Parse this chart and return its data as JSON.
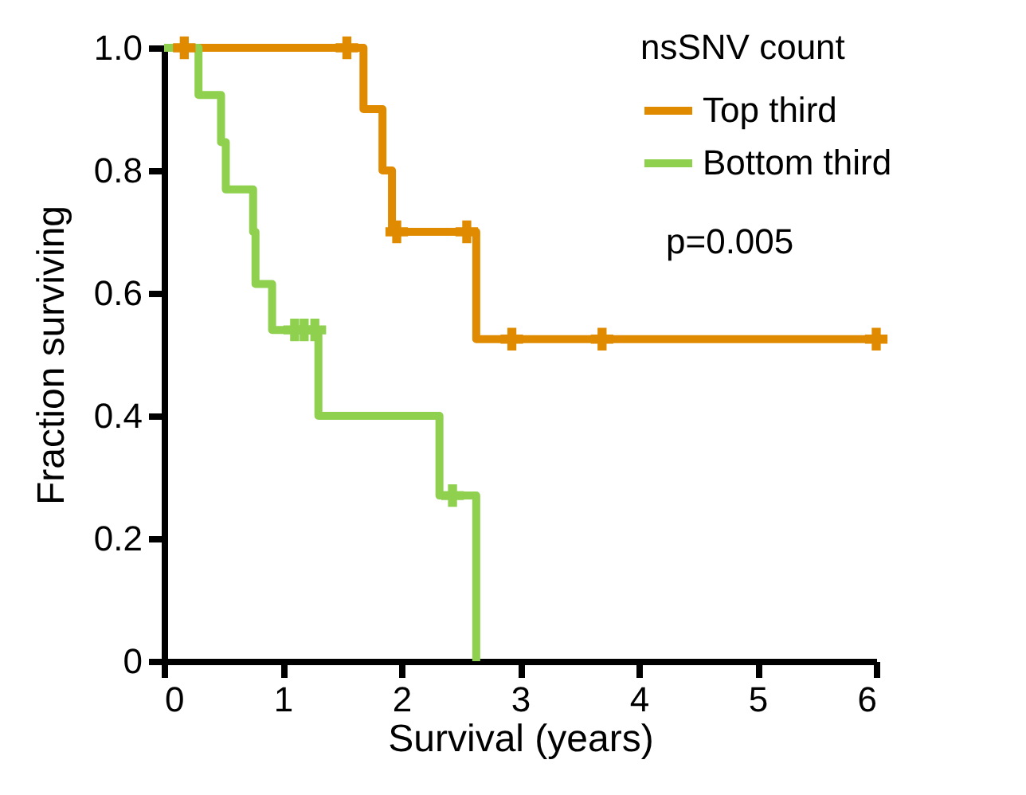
{
  "chart_data": {
    "type": "step",
    "xlabel": "Survival (years)",
    "ylabel": "Fraction surviving",
    "legend_title": "nsSNV count",
    "xlim": [
      0,
      6
    ],
    "xticks": [
      0,
      1,
      2,
      3,
      4,
      5,
      6
    ],
    "ylim": [
      0,
      1
    ],
    "yticks": [
      0,
      0.2,
      0.4,
      0.6,
      0.8,
      {
        "value": 1,
        "label": "1.0"
      }
    ],
    "legend": "top right",
    "grid": false,
    "line_style": "solid",
    "annotations": [
      "p=0.005"
    ],
    "series": [
      {
        "name": "Top third",
        "color": "#e08a00",
        "x": [
          0,
          1.68,
          1.84,
          1.92,
          2.63,
          6.0
        ],
        "values": [
          1,
          0.9,
          0.8,
          0.7,
          0.525,
          0.525
        ]
      },
      {
        "name": "Bottom third",
        "color": "#8fd14f",
        "x": [
          0,
          0.29,
          0.48,
          0.52,
          0.75,
          0.77,
          0.91,
          1.3,
          2.32,
          2.63
        ],
        "values": [
          1,
          0.923,
          0.846,
          0.769,
          0.7,
          0.615,
          0.54,
          0.4,
          0.27,
          0
        ]
      },
      {
        "type": "scatter",
        "marker": "cross",
        "color": "#e08a00",
        "x": [
          0.17,
          1.54,
          1.96,
          2.55,
          2.93,
          3.69,
          6.0
        ],
        "values": [
          1,
          1,
          0.7,
          0.7,
          0.525,
          0.525,
          0.525
        ]
      },
      {
        "type": "scatter",
        "marker": "cross",
        "color": "#8fd14f",
        "x": [
          1.1,
          1.18,
          1.27,
          2.43
        ],
        "values": [
          0.54,
          0.54,
          0.54,
          0.27
        ]
      }
    ]
  }
}
